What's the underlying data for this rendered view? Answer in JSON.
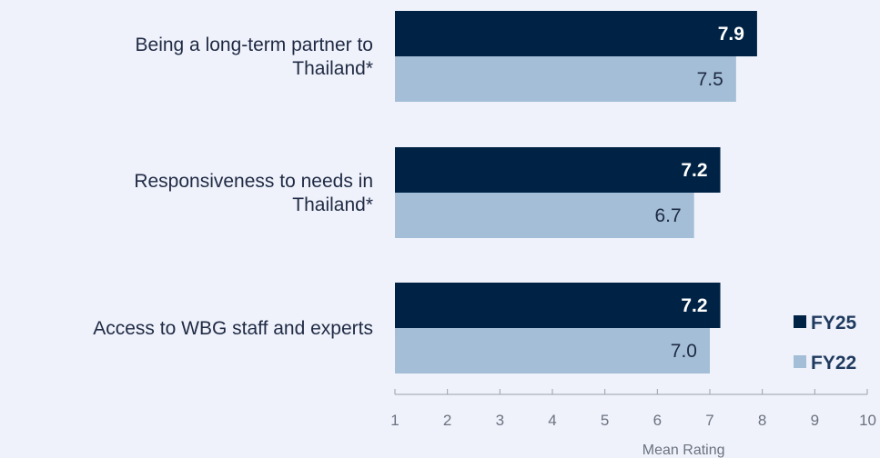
{
  "chart_data": {
    "type": "bar",
    "orientation": "horizontal",
    "categories": [
      [
        "Being a long-term partner to",
        "Thailand*"
      ],
      [
        "Responsiveness to needs in",
        "Thailand*"
      ],
      [
        "Access to WBG staff and experts"
      ]
    ],
    "series": [
      {
        "name": "FY25",
        "values": [
          7.9,
          7.2,
          7.2
        ],
        "labels": [
          "7.9",
          "7.2",
          "7.2"
        ],
        "color": "#002244"
      },
      {
        "name": "FY22",
        "values": [
          7.5,
          6.7,
          7.0
        ],
        "labels": [
          "7.5",
          "6.7",
          "7.0"
        ],
        "color": "#a3bed6"
      }
    ],
    "xlim": [
      1,
      10
    ],
    "xticks": [
      "1",
      "2",
      "3",
      "4",
      "5",
      "6",
      "7",
      "8",
      "9",
      "10"
    ],
    "xlabel": "Mean Rating",
    "legend_position": "right"
  }
}
